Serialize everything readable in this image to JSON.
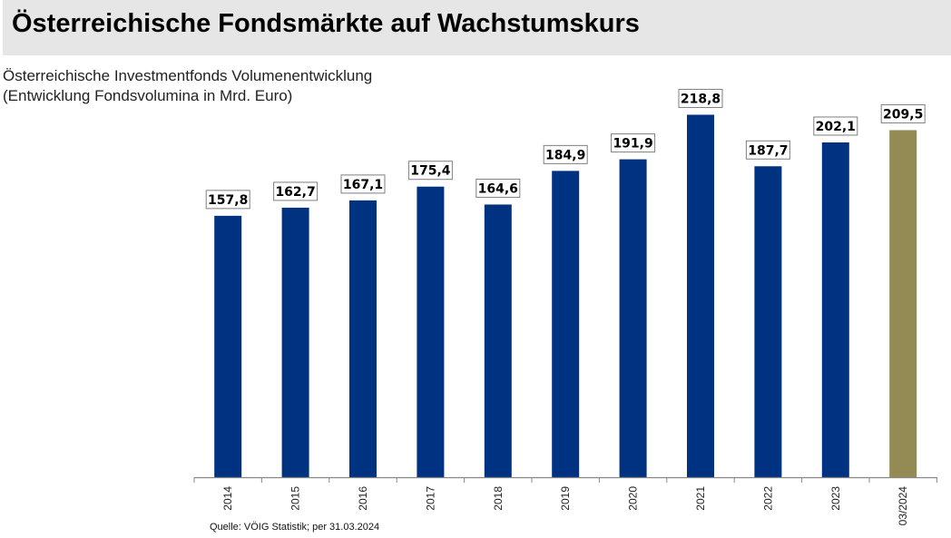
{
  "header": {
    "title": "Österreichische Fondsmärkte auf Wachstumskurs"
  },
  "chart_data": {
    "type": "bar",
    "title": "Österreichische Investmentfonds Volumenentwicklung",
    "subtitle": "(Entwicklung Fondsvolumina in Mrd. Euro)",
    "xlabel": "",
    "ylabel": "",
    "ylim": [
      0,
      230
    ],
    "grid": false,
    "categories": [
      "2014",
      "2015",
      "2016",
      "2017",
      "2018",
      "2019",
      "2020",
      "2021",
      "2022",
      "2023",
      "03/2024"
    ],
    "values": [
      157.8,
      162.7,
      167.1,
      175.4,
      164.6,
      184.9,
      191.9,
      218.8,
      187.7,
      202.1,
      209.5
    ],
    "data_labels": [
      "157,8",
      "162,7",
      "167,1",
      "175,4",
      "164,6",
      "184,9",
      "191,9",
      "218,8",
      "187,7",
      "202,1",
      "209,5"
    ],
    "colors": [
      "#003282",
      "#003282",
      "#003282",
      "#003282",
      "#003282",
      "#003282",
      "#003282",
      "#003282",
      "#003282",
      "#003282",
      "#948a54"
    ],
    "source": "Quelle: VÖIG Statistik; per 31.03.2024"
  }
}
